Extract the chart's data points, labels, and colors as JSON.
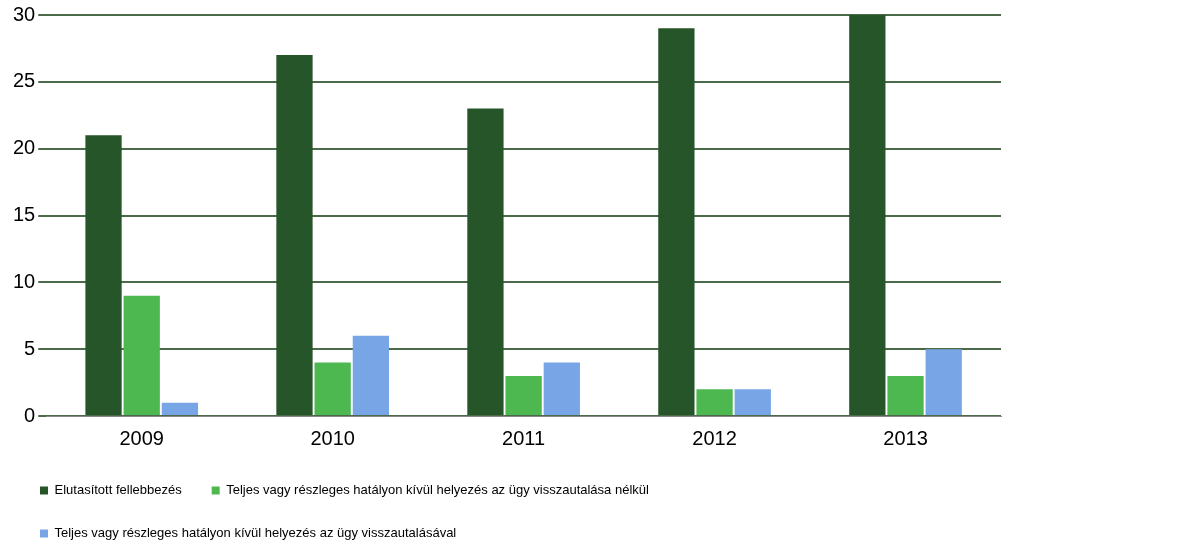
{
  "chart_data": {
    "type": "bar",
    "categories": [
      "2009",
      "2010",
      "2011",
      "2012",
      "2013"
    ],
    "series": [
      {
        "name": "Elutasított fellebbezés",
        "color": "#27552a",
        "values": [
          21,
          27,
          23,
          29,
          30
        ]
      },
      {
        "name": "Teljes vagy részleges hatályon kívül helyezés az ügy visszautalása nélkül",
        "color": "#4cb84f",
        "values": [
          9,
          4,
          3,
          2,
          3
        ]
      },
      {
        "name": "Teljes vagy részleges hatályon kívül helyezés az ügy visszautalásával",
        "color": "#78a5e6",
        "values": [
          1,
          6,
          4,
          2,
          5
        ]
      }
    ],
    "ylim": [
      0,
      30
    ],
    "yticks": [
      0,
      5,
      10,
      15,
      20,
      25,
      30
    ],
    "grid": "y",
    "legend": "bottom"
  }
}
